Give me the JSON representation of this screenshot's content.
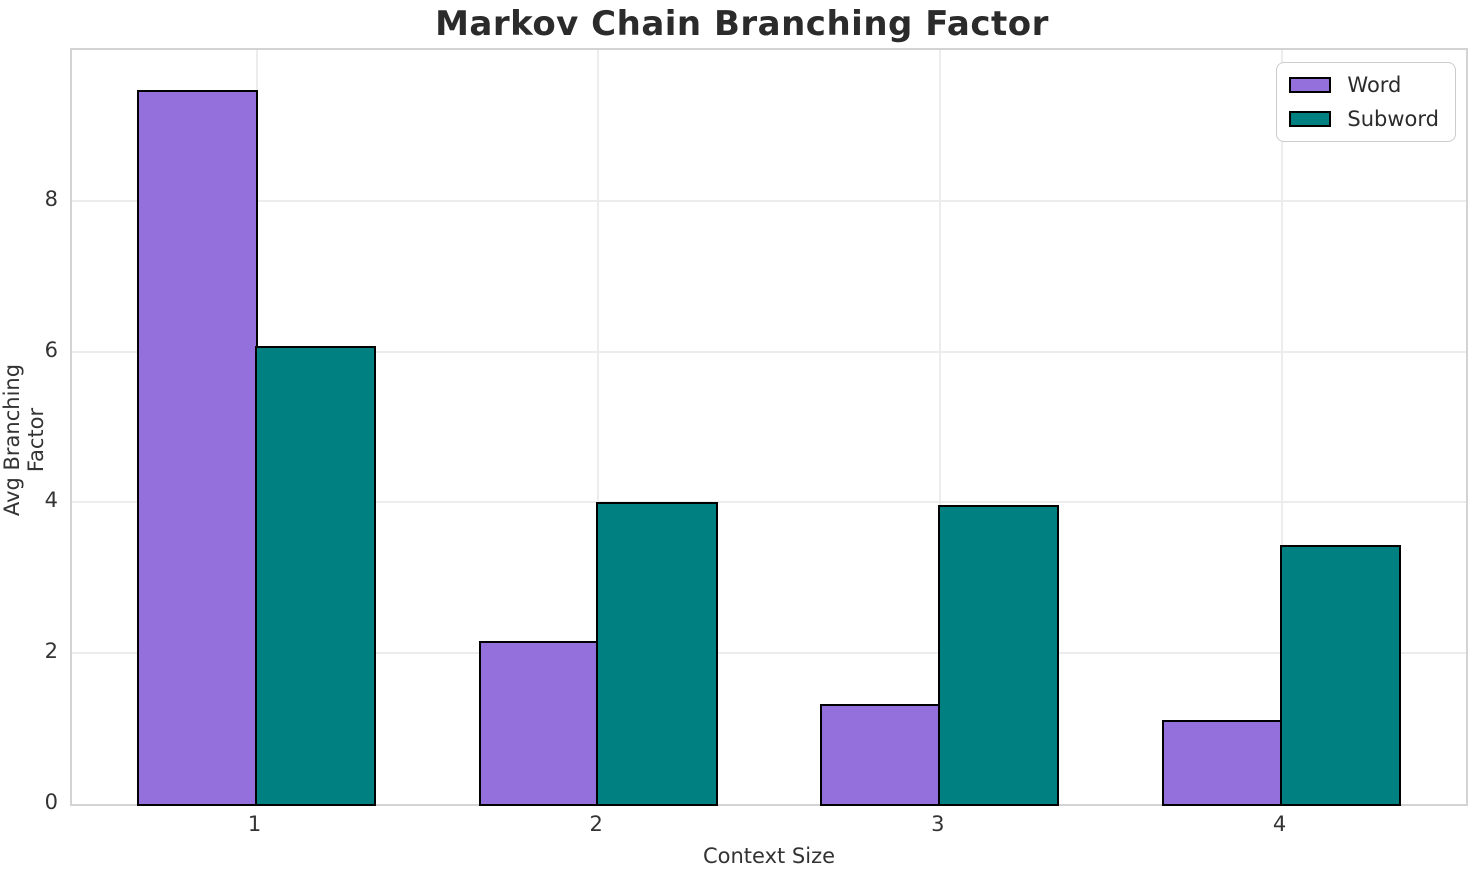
{
  "chart_data": {
    "type": "bar",
    "title": "Markov Chain Branching Factor",
    "xlabel": "Context Size",
    "ylabel": "Avg Branching Factor",
    "categories": [
      "1",
      "2",
      "3",
      "4"
    ],
    "series": [
      {
        "name": "Word",
        "color": "#9370DB",
        "values": [
          9.47,
          2.16,
          1.33,
          1.11
        ]
      },
      {
        "name": "Subword",
        "color": "#008080",
        "values": [
          6.07,
          4.0,
          3.97,
          3.43
        ]
      }
    ],
    "ylim": [
      0,
      10
    ],
    "yticks": [
      "0",
      "2",
      "4",
      "6",
      "8"
    ],
    "ytick_values": [
      0,
      2,
      4,
      6,
      8
    ],
    "bar_edge_color": "#000000",
    "grid": true,
    "legend_position": "upper right",
    "bar_width_units": 0.35,
    "xlim": [
      0.46,
      4.54
    ]
  }
}
